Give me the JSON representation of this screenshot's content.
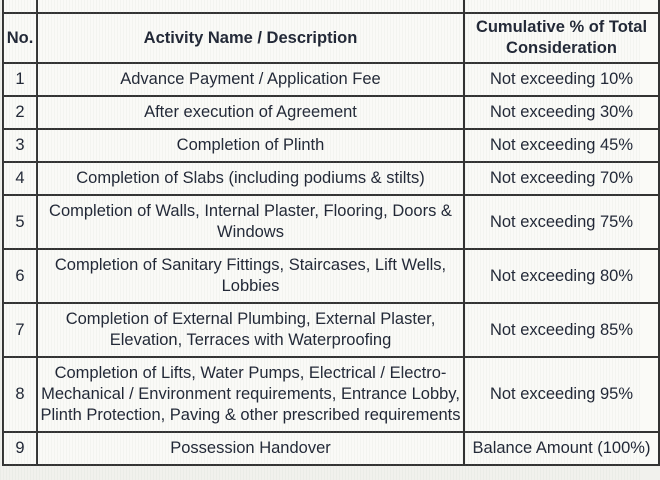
{
  "table": {
    "name": "construction-payment-schedule",
    "columns": [
      {
        "label": "No."
      },
      {
        "label": "Activity Name / Description"
      },
      {
        "label": "Cumulative % of Total Consideration"
      }
    ],
    "rows": [
      {
        "no": "1",
        "activity": "Advance Payment / Application Fee",
        "cumulative": "Not exceeding 10%"
      },
      {
        "no": "2",
        "activity": "After execution of Agreement",
        "cumulative": "Not exceeding 30%"
      },
      {
        "no": "3",
        "activity": "Completion of Plinth",
        "cumulative": "Not exceeding 45%"
      },
      {
        "no": "4",
        "activity": "Completion of Slabs (including podiums & stilts)",
        "cumulative": "Not exceeding 70%"
      },
      {
        "no": "5",
        "activity": "Completion of Walls, Internal Plaster, Flooring, Doors & Windows",
        "cumulative": "Not exceeding 75%"
      },
      {
        "no": "6",
        "activity": "Completion of Sanitary Fittings, Staircases, Lift Wells, Lobbies",
        "cumulative": "Not exceeding 80%"
      },
      {
        "no": "7",
        "activity": "Completion of External Plumbing, External Plaster, Elevation, Terraces with Waterproofing",
        "cumulative": "Not exceeding 85%"
      },
      {
        "no": "8",
        "activity": "Completion of Lifts, Water Pumps, Electrical / Electro-Mechanical / Environment requirements, Entrance Lobby, Plinth Protection, Paving & other prescribed requirements",
        "cumulative": "Not exceeding 95%"
      },
      {
        "no": "9",
        "activity": "Possession Handover",
        "cumulative": "Balance Amount (100%)"
      }
    ],
    "colors": {
      "text": "#212736",
      "border": "#333333",
      "cell_background": "#fafaf7",
      "page_background": "#f1f1ed"
    }
  }
}
